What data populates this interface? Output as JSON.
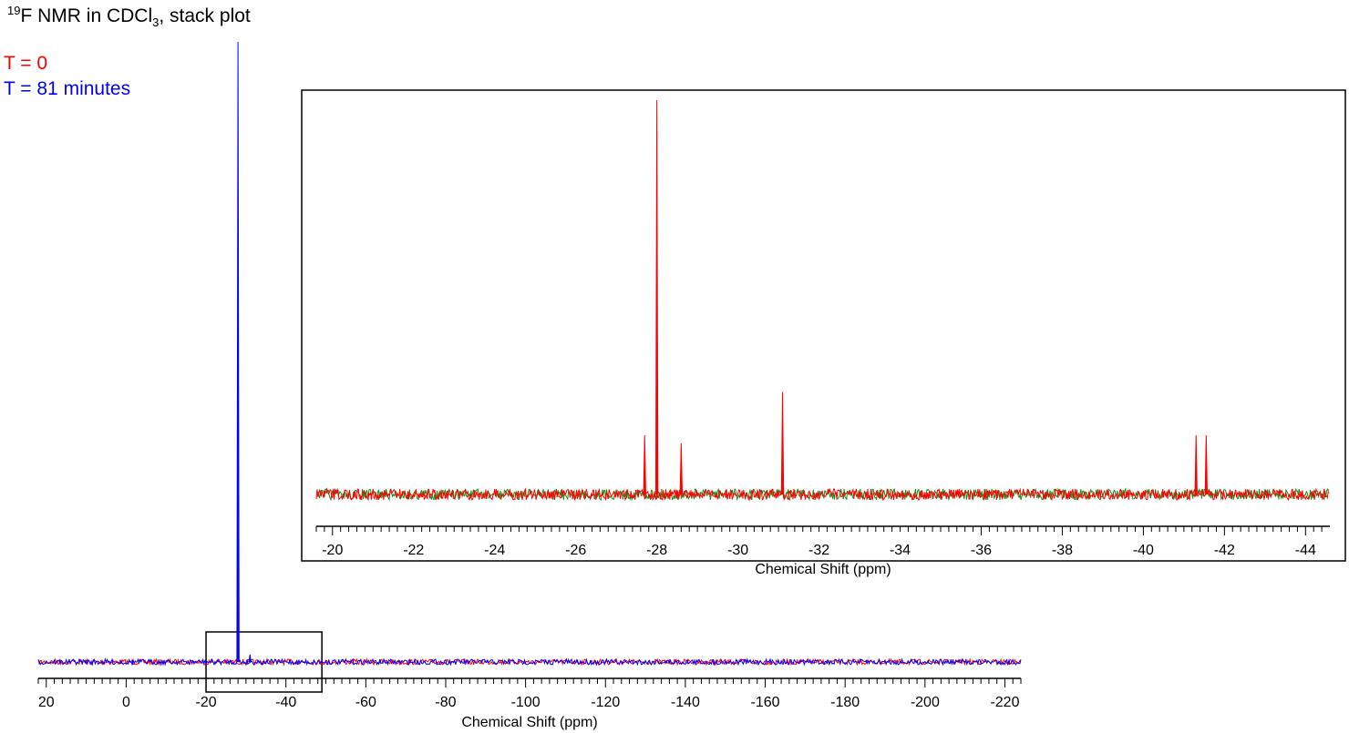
{
  "title": {
    "prefix": "19",
    "main": "F NMR in CDCl",
    "sub": "3",
    "suffix": ", stack plot"
  },
  "colors": {
    "t0": "#ff0000",
    "t81": "#0000ff",
    "inset_noise": "#1a8a1a",
    "frame": "#000000"
  },
  "chart_data": [
    {
      "type": "line",
      "name": "main",
      "title": "19F NMR in CDCl3, stack plot",
      "xlabel": "Chemical Shift (ppm)",
      "ylabel": "",
      "xlim": [
        22,
        -224
      ],
      "reversed_x": true,
      "grid": false,
      "x_ticks": [
        20,
        0,
        -20,
        -40,
        -60,
        -80,
        -100,
        -120,
        -140,
        -160,
        -180,
        -200,
        -220
      ],
      "x_tick_labels": [
        "20",
        "0",
        "-20",
        "-40",
        "-60",
        "-80",
        "-100",
        "-120",
        "-140",
        "-160",
        "-180",
        "-200",
        "-220"
      ],
      "legend": [
        "T = 0",
        "T = 81 minutes"
      ],
      "legend_position": "top-left",
      "series": [
        {
          "name": "T = 0",
          "color": "#ff0000",
          "peaks": [
            {
              "x": -28.0,
              "y": 0.02
            }
          ]
        },
        {
          "name": "T = 81 minutes",
          "color": "#0000ff",
          "peaks": [
            {
              "x": -28.0,
              "y": 1.0
            },
            {
              "x": -31.0,
              "y": 0.012
            }
          ]
        }
      ],
      "zoom_region": [
        -20,
        -49
      ]
    },
    {
      "type": "line",
      "name": "inset",
      "xlabel": "Chemical Shift (ppm)",
      "ylabel": "",
      "xlim": [
        -19.6,
        -44.6
      ],
      "reversed_x": true,
      "grid": false,
      "x_ticks": [
        -20,
        -22,
        -24,
        -26,
        -28,
        -30,
        -32,
        -34,
        -36,
        -38,
        -40,
        -42,
        -44
      ],
      "x_tick_labels": [
        "-20",
        "-22",
        "-24",
        "-26",
        "-28",
        "-30",
        "-32",
        "-34",
        "-36",
        "-38",
        "-40",
        "-42",
        "-44"
      ],
      "series": [
        {
          "name": "T = 0",
          "color": "#ff0000",
          "peaks": [
            {
              "x": -27.7,
              "y": 0.15
            },
            {
              "x": -28.0,
              "y": 1.0
            },
            {
              "x": -28.6,
              "y": 0.13
            },
            {
              "x": -31.1,
              "y": 0.26
            },
            {
              "x": -41.3,
              "y": 0.15
            },
            {
              "x": -41.55,
              "y": 0.15
            }
          ]
        }
      ]
    }
  ]
}
